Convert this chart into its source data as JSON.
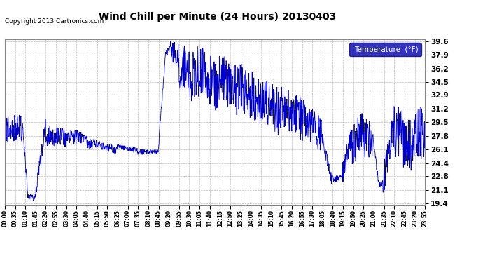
{
  "title": "Wind Chill per Minute (24 Hours) 20130403",
  "copyright_text": "Copyright 2013 Cartronics.com",
  "legend_label": "Temperature  (°F)",
  "line_color": "#0000CC",
  "background_color": "#FFFFFF",
  "grid_color": "#AAAAAA",
  "yticks": [
    19.4,
    21.1,
    22.8,
    24.4,
    26.1,
    27.8,
    29.5,
    31.2,
    32.9,
    34.5,
    36.2,
    37.9,
    39.6
  ],
  "ymin": 19.4,
  "ymax": 39.6,
  "xtick_labels": [
    "00:00",
    "00:35",
    "01:10",
    "01:45",
    "02:20",
    "02:55",
    "03:30",
    "04:05",
    "04:40",
    "05:15",
    "05:50",
    "06:25",
    "07:00",
    "07:35",
    "08:10",
    "08:45",
    "09:20",
    "09:55",
    "10:30",
    "11:05",
    "11:40",
    "12:15",
    "12:50",
    "13:25",
    "14:00",
    "14:35",
    "15:10",
    "15:45",
    "16:20",
    "16:55",
    "17:30",
    "18:05",
    "18:40",
    "19:15",
    "19:50",
    "20:25",
    "21:00",
    "21:35",
    "22:10",
    "22:45",
    "23:20",
    "23:55"
  ],
  "legend_box_color": "#0000AA",
  "legend_text_color": "#FFFFFF"
}
